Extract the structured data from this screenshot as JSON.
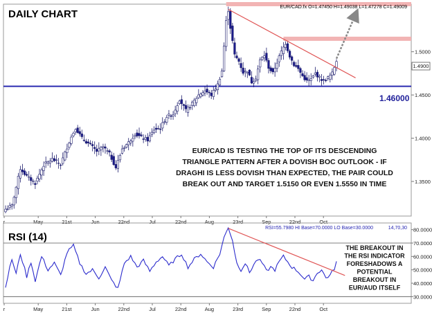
{
  "header": {
    "title": "DAILY CHART",
    "symbol_info": "EUR/CAD.fx O=1.47450 H=1.49038 L=1.47278 C=1.49009"
  },
  "rsi_header": {
    "title": "RSI (14)",
    "info": "RSI=55.7980 HI Base=70.0000 LO Base=30.0000",
    "params": "14,70,30"
  },
  "annotations": {
    "main_lines": [
      "EUR/CAD IS TESTING THE TOP OF ITS DESCENDING",
      "TRIANGLE PATTERN AFTER A DOVISH BOC OUTLOOK - IF",
      "DRAGHI IS LESS DOVISH THAN EXPECTED, THE PAIR COULD",
      "BREAK OUT AND TARGET 1.5150 OR EVEN 1.5550 IN TIME"
    ],
    "rsi_lines": [
      "THE BREAKOUT IN",
      "THE RSI INDICATOR",
      "FORESHADOWS A",
      "POTENTIAL",
      "BREAKOUT IN",
      "EUR/AUD ITSELF"
    ],
    "support_label": "1.46000",
    "current_price_label": "1.4900"
  },
  "colors": {
    "candle_up": "#ffffff",
    "candle_down": "#1c1c8c",
    "support": "#2a2ab0",
    "resistance_band": "#f2b4b4",
    "trendline": "#e05555",
    "rsi_line": "#2a2acc",
    "arrow": "#888888"
  },
  "chart_data": [
    {
      "type": "candlestick",
      "title": "DAILY CHART",
      "symbol": "EUR/CAD.fx",
      "ohlc_last": {
        "open": 1.4745,
        "high": 1.49038,
        "low": 1.47278,
        "close": 1.49009
      },
      "x_tick_labels": [
        "r",
        "May",
        "21st",
        "Jun",
        "22nd",
        "Jul",
        "22nd",
        "Aug",
        "23rd",
        "Sep",
        "22nd",
        "Oct"
      ],
      "y_tick_labels": [
        "1.5000",
        "1.4500",
        "1.4000",
        "1.3500"
      ],
      "ylim": [
        1.31,
        1.555
      ],
      "horizontal_levels": [
        {
          "value": 1.46,
          "label": "1.46000",
          "style": "support"
        },
        {
          "value": 1.515,
          "style": "resistance-band"
        },
        {
          "value": 1.555,
          "style": "resistance-band"
        }
      ],
      "trendline": {
        "from": {
          "index": 105,
          "value": 1.549
        },
        "to": {
          "index": 155,
          "value": 1.483
        }
      },
      "projection_arrow": {
        "from": {
          "index": 156,
          "value": 1.492
        },
        "to": {
          "index": 165,
          "value": 1.543
        }
      },
      "anchors": [
        {
          "i": 0,
          "v": 1.318
        },
        {
          "i": 3,
          "v": 1.322
        },
        {
          "i": 7,
          "v": 1.365
        },
        {
          "i": 10,
          "v": 1.356
        },
        {
          "i": 14,
          "v": 1.348
        },
        {
          "i": 18,
          "v": 1.369
        },
        {
          "i": 22,
          "v": 1.376
        },
        {
          "i": 26,
          "v": 1.37
        },
        {
          "i": 30,
          "v": 1.396
        },
        {
          "i": 33,
          "v": 1.412
        },
        {
          "i": 36,
          "v": 1.4
        },
        {
          "i": 40,
          "v": 1.392
        },
        {
          "i": 43,
          "v": 1.385
        },
        {
          "i": 46,
          "v": 1.39
        },
        {
          "i": 49,
          "v": 1.382
        },
        {
          "i": 52,
          "v": 1.366
        },
        {
          "i": 55,
          "v": 1.388
        },
        {
          "i": 58,
          "v": 1.395
        },
        {
          "i": 61,
          "v": 1.405
        },
        {
          "i": 64,
          "v": 1.401
        },
        {
          "i": 67,
          "v": 1.398
        },
        {
          "i": 70,
          "v": 1.41
        },
        {
          "i": 73,
          "v": 1.412
        },
        {
          "i": 76,
          "v": 1.425
        },
        {
          "i": 79,
          "v": 1.428
        },
        {
          "i": 82,
          "v": 1.445
        },
        {
          "i": 85,
          "v": 1.432
        },
        {
          "i": 88,
          "v": 1.44
        },
        {
          "i": 91,
          "v": 1.45
        },
        {
          "i": 94,
          "v": 1.455
        },
        {
          "i": 97,
          "v": 1.45
        },
        {
          "i": 100,
          "v": 1.462
        },
        {
          "i": 102,
          "v": 1.478
        },
        {
          "i": 104,
          "v": 1.535
        },
        {
          "i": 105,
          "v": 1.548
        },
        {
          "i": 106,
          "v": 1.528
        },
        {
          "i": 108,
          "v": 1.496
        },
        {
          "i": 110,
          "v": 1.489
        },
        {
          "i": 112,
          "v": 1.476
        },
        {
          "i": 114,
          "v": 1.478
        },
        {
          "i": 116,
          "v": 1.465
        },
        {
          "i": 118,
          "v": 1.47
        },
        {
          "i": 120,
          "v": 1.49
        },
        {
          "i": 122,
          "v": 1.496
        },
        {
          "i": 124,
          "v": 1.482
        },
        {
          "i": 126,
          "v": 1.475
        },
        {
          "i": 128,
          "v": 1.488
        },
        {
          "i": 130,
          "v": 1.5
        },
        {
          "i": 132,
          "v": 1.51
        },
        {
          "i": 134,
          "v": 1.495
        },
        {
          "i": 136,
          "v": 1.485
        },
        {
          "i": 138,
          "v": 1.48
        },
        {
          "i": 140,
          "v": 1.472
        },
        {
          "i": 142,
          "v": 1.466
        },
        {
          "i": 144,
          "v": 1.468
        },
        {
          "i": 146,
          "v": 1.475
        },
        {
          "i": 148,
          "v": 1.47
        },
        {
          "i": 150,
          "v": 1.466
        },
        {
          "i": 152,
          "v": 1.47
        },
        {
          "i": 154,
          "v": 1.475
        },
        {
          "i": 156,
          "v": 1.49
        }
      ]
    },
    {
      "type": "line",
      "title": "RSI (14)",
      "y_tick_labels": [
        "80.0000",
        "70.0000",
        "60.0000",
        "50.0000",
        "40.0000",
        "30.0000"
      ],
      "ylim": [
        25,
        85
      ],
      "base_levels": [
        70,
        30
      ],
      "trendline": {
        "from": {
          "index": 105,
          "value": 81
        },
        "to": {
          "index": 155,
          "value": 49
        }
      },
      "anchors": [
        {
          "i": 0,
          "v": 38
        },
        {
          "i": 3,
          "v": 58
        },
        {
          "i": 5,
          "v": 47
        },
        {
          "i": 7,
          "v": 62
        },
        {
          "i": 10,
          "v": 45
        },
        {
          "i": 12,
          "v": 56
        },
        {
          "i": 14,
          "v": 42
        },
        {
          "i": 17,
          "v": 60
        },
        {
          "i": 20,
          "v": 50
        },
        {
          "i": 23,
          "v": 55
        },
        {
          "i": 26,
          "v": 46
        },
        {
          "i": 29,
          "v": 63
        },
        {
          "i": 32,
          "v": 68
        },
        {
          "i": 35,
          "v": 55
        },
        {
          "i": 38,
          "v": 47
        },
        {
          "i": 41,
          "v": 50
        },
        {
          "i": 44,
          "v": 44
        },
        {
          "i": 47,
          "v": 52
        },
        {
          "i": 50,
          "v": 42
        },
        {
          "i": 53,
          "v": 36
        },
        {
          "i": 56,
          "v": 55
        },
        {
          "i": 59,
          "v": 60
        },
        {
          "i": 62,
          "v": 52
        },
        {
          "i": 65,
          "v": 57
        },
        {
          "i": 68,
          "v": 49
        },
        {
          "i": 71,
          "v": 56
        },
        {
          "i": 74,
          "v": 60
        },
        {
          "i": 77,
          "v": 53
        },
        {
          "i": 80,
          "v": 58
        },
        {
          "i": 83,
          "v": 62
        },
        {
          "i": 86,
          "v": 52
        },
        {
          "i": 89,
          "v": 58
        },
        {
          "i": 92,
          "v": 62
        },
        {
          "i": 95,
          "v": 56
        },
        {
          "i": 98,
          "v": 52
        },
        {
          "i": 101,
          "v": 62
        },
        {
          "i": 103,
          "v": 74
        },
        {
          "i": 105,
          "v": 82
        },
        {
          "i": 107,
          "v": 72
        },
        {
          "i": 109,
          "v": 55
        },
        {
          "i": 111,
          "v": 50
        },
        {
          "i": 113,
          "v": 55
        },
        {
          "i": 115,
          "v": 48
        },
        {
          "i": 117,
          "v": 54
        },
        {
          "i": 119,
          "v": 58
        },
        {
          "i": 121,
          "v": 55
        },
        {
          "i": 123,
          "v": 49
        },
        {
          "i": 125,
          "v": 52
        },
        {
          "i": 127,
          "v": 50
        },
        {
          "i": 129,
          "v": 56
        },
        {
          "i": 131,
          "v": 60
        },
        {
          "i": 133,
          "v": 56
        },
        {
          "i": 135,
          "v": 52
        },
        {
          "i": 137,
          "v": 50
        },
        {
          "i": 139,
          "v": 47
        },
        {
          "i": 141,
          "v": 43
        },
        {
          "i": 143,
          "v": 45
        },
        {
          "i": 145,
          "v": 42
        },
        {
          "i": 147,
          "v": 48
        },
        {
          "i": 149,
          "v": 50
        },
        {
          "i": 151,
          "v": 44
        },
        {
          "i": 153,
          "v": 46
        },
        {
          "i": 155,
          "v": 51
        },
        {
          "i": 156,
          "v": 56
        }
      ]
    }
  ]
}
